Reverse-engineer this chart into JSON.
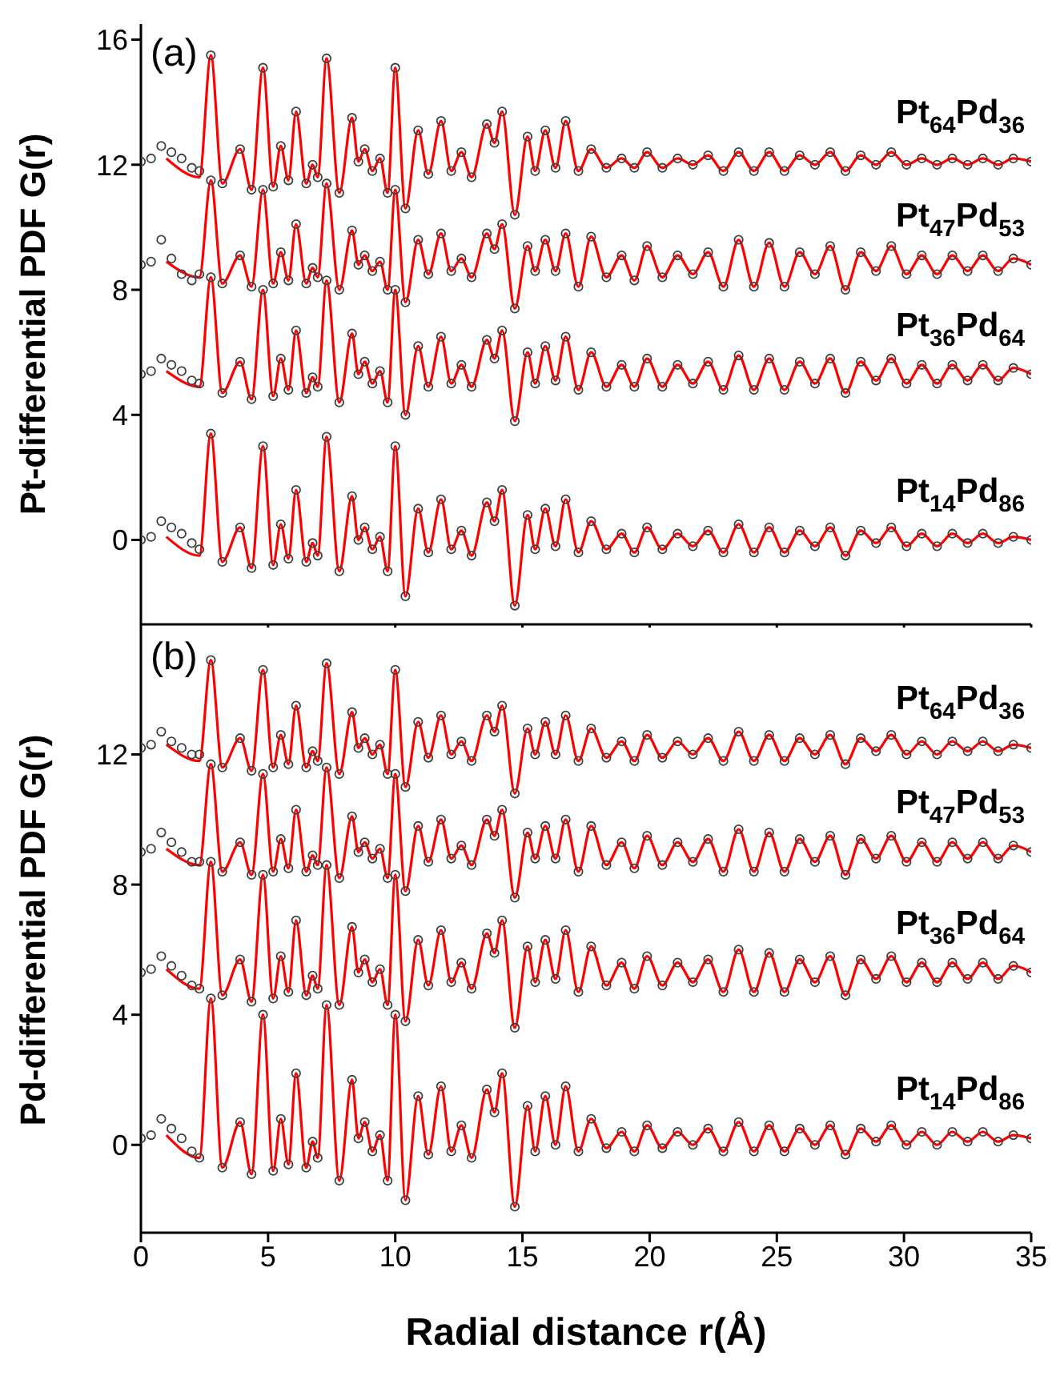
{
  "chart_data": [
    {
      "type": "line",
      "annotations": [
        "(a)"
      ],
      "ylabel": "Pt-differential PDF G(r)",
      "xlim": [
        0,
        35
      ],
      "xticks": [
        0,
        5,
        10,
        15,
        20,
        25,
        30,
        35
      ],
      "ylim": [
        -2.7,
        16.5
      ],
      "yticks": [
        0,
        4,
        8,
        12,
        16
      ],
      "tick_labels": "y",
      "x": [
        0,
        0.4,
        0.8,
        1.2,
        1.6,
        2.0,
        2.3,
        2.75,
        3.2,
        3.9,
        4.35,
        4.8,
        5.2,
        5.5,
        5.8,
        6.1,
        6.5,
        6.75,
        6.95,
        7.3,
        7.8,
        8.3,
        8.55,
        8.8,
        9.1,
        9.4,
        9.7,
        10.0,
        10.4,
        10.9,
        11.3,
        11.8,
        12.2,
        12.6,
        13.0,
        13.6,
        13.9,
        14.2,
        14.7,
        15.2,
        15.5,
        15.9,
        16.3,
        16.7,
        17.2,
        17.7,
        18.3,
        18.9,
        19.4,
        19.9,
        20.5,
        21.1,
        21.7,
        22.3,
        22.9,
        23.5,
        24.1,
        24.7,
        25.3,
        25.9,
        26.5,
        27.1,
        27.7,
        28.3,
        28.9,
        29.5,
        30.1,
        30.7,
        31.3,
        31.9,
        32.5,
        33.1,
        33.7,
        34.3,
        35.0
      ],
      "series": [
        {
          "type": "scatter",
          "name": "Pt$_{64}$Pd$_{36}$",
          "marker": "circle",
          "color": "#404040",
          "values": [
            12.1,
            12.2,
            12.6,
            12.4,
            12.2,
            11.9,
            11.8,
            15.5,
            11.4,
            12.5,
            11.2,
            15.1,
            11.3,
            12.6,
            11.5,
            13.7,
            11.4,
            12.0,
            11.6,
            15.4,
            11.1,
            13.5,
            12.1,
            12.5,
            11.8,
            12.2,
            11.1,
            15.1,
            10.6,
            13.1,
            11.7,
            13.4,
            11.8,
            12.4,
            11.6,
            13.3,
            12.7,
            13.7,
            10.4,
            12.9,
            11.8,
            13.1,
            11.9,
            13.4,
            11.8,
            12.5,
            11.9,
            12.2,
            11.9,
            12.4,
            11.9,
            12.2,
            12.0,
            12.3,
            11.8,
            12.4,
            11.8,
            12.4,
            11.8,
            12.3,
            12.0,
            12.4,
            11.8,
            12.3,
            12.0,
            12.4,
            12.0,
            12.2,
            12.0,
            12.2,
            12.0,
            12.2,
            12.0,
            12.2,
            12.1
          ]
        },
        {
          "type": "line",
          "color": "#ff0000",
          "x": [
            1.0,
            2.3,
            2.75,
            3.2,
            3.9,
            4.35,
            4.8,
            5.2,
            5.5,
            5.8,
            6.1,
            6.5,
            6.75,
            6.95,
            7.3,
            7.8,
            8.3,
            8.55,
            8.8,
            9.1,
            9.4,
            9.7,
            10.0,
            10.4,
            10.9,
            11.3,
            11.8,
            12.2,
            12.6,
            13.0,
            13.6,
            13.9,
            14.2,
            14.7,
            15.2,
            15.5,
            15.9,
            16.3,
            16.7,
            17.2,
            17.7,
            18.3,
            18.9,
            19.4,
            19.9,
            20.5,
            21.1,
            21.7,
            22.3,
            22.9,
            23.5,
            24.1,
            24.7,
            25.3,
            25.9,
            26.5,
            27.1,
            27.7,
            28.3,
            28.9,
            29.5,
            30.1,
            30.7,
            31.3,
            31.9,
            32.5,
            33.1,
            33.7,
            34.3,
            35.0
          ],
          "values": [
            12.2,
            11.6,
            15.5,
            11.4,
            12.5,
            11.2,
            15.1,
            11.3,
            12.6,
            11.5,
            13.7,
            11.4,
            12.0,
            11.6,
            15.4,
            11.1,
            13.5,
            12.1,
            12.5,
            11.8,
            12.2,
            11.1,
            15.1,
            10.6,
            13.1,
            11.7,
            13.4,
            11.8,
            12.4,
            11.6,
            13.3,
            12.7,
            13.7,
            10.4,
            12.9,
            11.8,
            13.1,
            11.9,
            13.4,
            11.8,
            12.5,
            11.9,
            12.2,
            11.9,
            12.4,
            11.9,
            12.2,
            12.0,
            12.3,
            11.8,
            12.4,
            11.8,
            12.4,
            11.8,
            12.3,
            12.0,
            12.4,
            11.8,
            12.3,
            12.0,
            12.4,
            12.0,
            12.2,
            12.0,
            12.2,
            12.0,
            12.2,
            12.0,
            12.2,
            12.1
          ]
        },
        {
          "type": "scatter",
          "name": "Pt$_{47}$Pd$_{53}$",
          "marker": "circle",
          "color": "#404040",
          "values": [
            8.8,
            8.9,
            9.6,
            9.0,
            8.5,
            8.3,
            8.5,
            11.5,
            8.2,
            9.1,
            8.1,
            11.2,
            8.2,
            9.2,
            8.3,
            10.1,
            8.2,
            8.7,
            8.4,
            11.4,
            8.0,
            9.9,
            8.8,
            9.1,
            8.6,
            8.9,
            8.0,
            11.2,
            7.6,
            9.6,
            8.5,
            9.8,
            8.6,
            9.0,
            8.4,
            9.8,
            9.3,
            10.1,
            7.4,
            9.4,
            8.6,
            9.6,
            8.6,
            9.8,
            8.1,
            9.7,
            8.4,
            9.1,
            8.3,
            9.4,
            8.4,
            9.1,
            8.5,
            9.2,
            8.1,
            9.6,
            8.1,
            9.5,
            8.1,
            9.2,
            8.5,
            9.4,
            8.0,
            9.2,
            8.6,
            9.4,
            8.5,
            9.1,
            8.5,
            9.1,
            8.6,
            9.1,
            8.6,
            9.0,
            8.8
          ]
        },
        {
          "type": "line",
          "color": "#ff0000",
          "x": [
            1.0,
            2.3,
            2.75,
            3.2,
            3.9,
            4.35,
            4.8,
            5.2,
            5.5,
            5.8,
            6.1,
            6.5,
            6.75,
            6.95,
            7.3,
            7.8,
            8.3,
            8.55,
            8.8,
            9.1,
            9.4,
            9.7,
            10.0,
            10.4,
            10.9,
            11.3,
            11.8,
            12.2,
            12.6,
            13.0,
            13.6,
            13.9,
            14.2,
            14.7,
            15.2,
            15.5,
            15.9,
            16.3,
            16.7,
            17.2,
            17.7,
            18.3,
            18.9,
            19.4,
            19.9,
            20.5,
            21.1,
            21.7,
            22.3,
            22.9,
            23.5,
            24.1,
            24.7,
            25.3,
            25.9,
            26.5,
            27.1,
            27.7,
            28.3,
            28.9,
            29.5,
            30.1,
            30.7,
            31.3,
            31.9,
            32.5,
            33.1,
            33.7,
            34.3,
            35.0
          ],
          "values": [
            8.9,
            8.4,
            11.5,
            8.2,
            9.1,
            8.1,
            11.2,
            8.2,
            9.2,
            8.3,
            10.1,
            8.2,
            8.7,
            8.4,
            11.4,
            8.0,
            9.9,
            8.8,
            9.1,
            8.6,
            8.9,
            8.0,
            11.2,
            7.6,
            9.6,
            8.5,
            9.8,
            8.6,
            9.0,
            8.4,
            9.8,
            9.3,
            10.1,
            7.4,
            9.4,
            8.6,
            9.6,
            8.6,
            9.8,
            8.1,
            9.7,
            8.4,
            9.1,
            8.3,
            9.4,
            8.4,
            9.1,
            8.5,
            9.2,
            8.1,
            9.6,
            8.1,
            9.5,
            8.1,
            9.2,
            8.5,
            9.4,
            8.0,
            9.2,
            8.6,
            9.4,
            8.5,
            9.1,
            8.5,
            9.1,
            8.6,
            9.1,
            8.6,
            9.0,
            8.8
          ]
        },
        {
          "type": "scatter",
          "name": "Pt$_{36}$Pd$_{64}$",
          "marker": "circle",
          "color": "#404040",
          "values": [
            5.3,
            5.4,
            5.8,
            5.6,
            5.4,
            5.1,
            5.0,
            8.4,
            4.7,
            5.7,
            4.5,
            8.0,
            4.6,
            5.8,
            4.8,
            6.7,
            4.7,
            5.2,
            4.9,
            8.3,
            4.4,
            6.6,
            5.3,
            5.7,
            5.0,
            5.4,
            4.4,
            8.0,
            4.0,
            6.2,
            4.9,
            6.5,
            5.0,
            5.6,
            4.9,
            6.4,
            5.8,
            6.7,
            3.8,
            6.0,
            5.0,
            6.2,
            5.1,
            6.5,
            4.8,
            6.0,
            4.9,
            5.6,
            4.9,
            5.8,
            4.9,
            5.6,
            5.0,
            5.7,
            4.8,
            5.9,
            4.8,
            5.8,
            4.8,
            5.7,
            5.0,
            5.8,
            4.7,
            5.7,
            5.1,
            5.8,
            5.0,
            5.6,
            5.0,
            5.6,
            5.1,
            5.6,
            5.1,
            5.5,
            5.3
          ]
        },
        {
          "type": "line",
          "color": "#ff0000",
          "x": [
            1.0,
            2.3,
            2.75,
            3.2,
            3.9,
            4.35,
            4.8,
            5.2,
            5.5,
            5.8,
            6.1,
            6.5,
            6.75,
            6.95,
            7.3,
            7.8,
            8.3,
            8.55,
            8.8,
            9.1,
            9.4,
            9.7,
            10.0,
            10.4,
            10.9,
            11.3,
            11.8,
            12.2,
            12.6,
            13.0,
            13.6,
            13.9,
            14.2,
            14.7,
            15.2,
            15.5,
            15.9,
            16.3,
            16.7,
            17.2,
            17.7,
            18.3,
            18.9,
            19.4,
            19.9,
            20.5,
            21.1,
            21.7,
            22.3,
            22.9,
            23.5,
            24.1,
            24.7,
            25.3,
            25.9,
            26.5,
            27.1,
            27.7,
            28.3,
            28.9,
            29.5,
            30.1,
            30.7,
            31.3,
            31.9,
            32.5,
            33.1,
            33.7,
            34.3,
            35.0
          ],
          "values": [
            5.4,
            4.9,
            8.4,
            4.7,
            5.7,
            4.5,
            8.0,
            4.6,
            5.8,
            4.8,
            6.7,
            4.7,
            5.2,
            4.9,
            8.3,
            4.4,
            6.6,
            5.3,
            5.7,
            5.0,
            5.4,
            4.4,
            8.0,
            4.0,
            6.2,
            4.9,
            6.5,
            5.0,
            5.6,
            4.9,
            6.4,
            5.8,
            6.7,
            3.8,
            6.0,
            5.0,
            6.2,
            5.1,
            6.5,
            4.8,
            6.0,
            4.9,
            5.6,
            4.9,
            5.8,
            4.9,
            5.6,
            5.0,
            5.7,
            4.8,
            5.9,
            4.8,
            5.8,
            4.8,
            5.7,
            5.0,
            5.8,
            4.7,
            5.7,
            5.1,
            5.8,
            5.0,
            5.6,
            5.0,
            5.6,
            5.1,
            5.6,
            5.1,
            5.5,
            5.3
          ]
        },
        {
          "type": "scatter",
          "name": "Pt$_{14}$Pd$_{86}$",
          "marker": "circle",
          "color": "#404040",
          "values": [
            0.0,
            0.1,
            0.6,
            0.4,
            0.2,
            -0.1,
            -0.3,
            3.4,
            -0.7,
            0.4,
            -0.9,
            3.0,
            -0.8,
            0.5,
            -0.6,
            1.6,
            -0.7,
            -0.1,
            -0.5,
            3.3,
            -1.0,
            1.4,
            0.0,
            0.4,
            -0.3,
            0.1,
            -1.0,
            3.0,
            -1.8,
            1.0,
            -0.4,
            1.3,
            -0.3,
            0.3,
            -0.5,
            1.2,
            0.6,
            1.6,
            -2.1,
            0.8,
            -0.3,
            1.0,
            -0.2,
            1.3,
            -0.4,
            0.6,
            -0.3,
            0.2,
            -0.4,
            0.4,
            -0.3,
            0.2,
            -0.2,
            0.3,
            -0.4,
            0.5,
            -0.4,
            0.4,
            -0.4,
            0.3,
            -0.2,
            0.4,
            -0.5,
            0.3,
            -0.1,
            0.4,
            -0.2,
            0.2,
            -0.2,
            0.2,
            -0.1,
            0.2,
            -0.1,
            0.1,
            0.0
          ]
        },
        {
          "type": "line",
          "color": "#ff0000",
          "x": [
            1.0,
            2.3,
            2.75,
            3.2,
            3.9,
            4.35,
            4.8,
            5.2,
            5.5,
            5.8,
            6.1,
            6.5,
            6.75,
            6.95,
            7.3,
            7.8,
            8.3,
            8.55,
            8.8,
            9.1,
            9.4,
            9.7,
            10.0,
            10.4,
            10.9,
            11.3,
            11.8,
            12.2,
            12.6,
            13.0,
            13.6,
            13.9,
            14.2,
            14.7,
            15.2,
            15.5,
            15.9,
            16.3,
            16.7,
            17.2,
            17.7,
            18.3,
            18.9,
            19.4,
            19.9,
            20.5,
            21.1,
            21.7,
            22.3,
            22.9,
            23.5,
            24.1,
            24.7,
            25.3,
            25.9,
            26.5,
            27.1,
            27.7,
            28.3,
            28.9,
            29.5,
            30.1,
            30.7,
            31.3,
            31.9,
            32.5,
            33.1,
            33.7,
            34.3,
            35.0
          ],
          "values": [
            0.1,
            -0.5,
            3.4,
            -0.7,
            0.4,
            -0.9,
            3.0,
            -0.8,
            0.5,
            -0.6,
            1.6,
            -0.7,
            -0.1,
            -0.5,
            3.3,
            -1.0,
            1.4,
            0.0,
            0.4,
            -0.3,
            0.1,
            -1.0,
            3.0,
            -1.8,
            1.0,
            -0.4,
            1.3,
            -0.3,
            0.3,
            -0.5,
            1.2,
            0.6,
            1.6,
            -2.1,
            0.8,
            -0.3,
            1.0,
            -0.2,
            1.3,
            -0.4,
            0.6,
            -0.3,
            0.2,
            -0.4,
            0.4,
            -0.3,
            0.2,
            -0.2,
            0.3,
            -0.4,
            0.5,
            -0.4,
            0.4,
            -0.4,
            0.3,
            -0.2,
            0.4,
            -0.5,
            0.3,
            -0.1,
            0.4,
            -0.2,
            0.2,
            -0.2,
            0.2,
            -0.1,
            0.2,
            -0.1,
            0.1,
            0.0
          ]
        }
      ]
    },
    {
      "type": "line",
      "annotations": [
        "(b)"
      ],
      "ylabel": "Pd-differential PDF G(r)",
      "xlabel": "Radial distance r(Å)",
      "xlim": [
        0,
        35
      ],
      "xticks": [
        0,
        5,
        10,
        15,
        20,
        25,
        30,
        35
      ],
      "ylim": [
        -2.7,
        15.9
      ],
      "yticks": [
        0,
        4,
        8,
        12
      ],
      "x": [
        0,
        0.4,
        0.8,
        1.2,
        1.6,
        2.0,
        2.3,
        2.75,
        3.2,
        3.9,
        4.35,
        4.8,
        5.2,
        5.5,
        5.8,
        6.1,
        6.5,
        6.75,
        6.95,
        7.3,
        7.8,
        8.3,
        8.55,
        8.8,
        9.1,
        9.4,
        9.7,
        10.0,
        10.4,
        10.9,
        11.3,
        11.8,
        12.2,
        12.6,
        13.0,
        13.6,
        13.9,
        14.2,
        14.7,
        15.2,
        15.5,
        15.9,
        16.3,
        16.7,
        17.2,
        17.7,
        18.3,
        18.9,
        19.4,
        19.9,
        20.5,
        21.1,
        21.7,
        22.3,
        22.9,
        23.5,
        24.1,
        24.7,
        25.3,
        25.9,
        26.5,
        27.1,
        27.7,
        28.3,
        28.9,
        29.5,
        30.1,
        30.7,
        31.3,
        31.9,
        32.5,
        33.1,
        33.7,
        34.3,
        35.0
      ],
      "series": [
        {
          "type": "scatter",
          "name": "Pt$_{64}$Pd$_{36}$",
          "marker": "circle",
          "color": "#404040",
          "values": [
            12.2,
            12.3,
            12.7,
            12.4,
            12.2,
            12.0,
            12.0,
            14.9,
            11.6,
            12.5,
            11.5,
            14.6,
            11.6,
            12.6,
            11.7,
            13.5,
            11.6,
            12.1,
            11.8,
            14.8,
            11.4,
            13.3,
            12.2,
            12.5,
            12.0,
            12.3,
            11.4,
            14.6,
            11.0,
            13.0,
            11.9,
            13.2,
            12.0,
            12.4,
            11.8,
            13.2,
            12.7,
            13.5,
            10.8,
            12.8,
            12.0,
            13.0,
            12.0,
            13.2,
            11.8,
            12.8,
            11.9,
            12.4,
            11.8,
            12.6,
            11.9,
            12.4,
            12.0,
            12.5,
            11.8,
            12.7,
            11.8,
            12.6,
            11.8,
            12.5,
            12.0,
            12.6,
            11.7,
            12.5,
            12.1,
            12.6,
            12.0,
            12.4,
            12.0,
            12.4,
            12.1,
            12.4,
            12.1,
            12.3,
            12.2
          ]
        },
        {
          "type": "line",
          "color": "#ff0000",
          "x": [
            1.0,
            2.3,
            2.75,
            3.2,
            3.9,
            4.35,
            4.8,
            5.2,
            5.5,
            5.8,
            6.1,
            6.5,
            6.75,
            6.95,
            7.3,
            7.8,
            8.3,
            8.55,
            8.8,
            9.1,
            9.4,
            9.7,
            10.0,
            10.4,
            10.9,
            11.3,
            11.8,
            12.2,
            12.6,
            13.0,
            13.6,
            13.9,
            14.2,
            14.7,
            15.2,
            15.5,
            15.9,
            16.3,
            16.7,
            17.2,
            17.7,
            18.3,
            18.9,
            19.4,
            19.9,
            20.5,
            21.1,
            21.7,
            22.3,
            22.9,
            23.5,
            24.1,
            24.7,
            25.3,
            25.9,
            26.5,
            27.1,
            27.7,
            28.3,
            28.9,
            29.5,
            30.1,
            30.7,
            31.3,
            31.9,
            32.5,
            33.1,
            33.7,
            34.3,
            35.0
          ],
          "values": [
            12.3,
            11.8,
            14.9,
            11.6,
            12.5,
            11.5,
            14.6,
            11.6,
            12.6,
            11.7,
            13.5,
            11.6,
            12.1,
            11.8,
            14.8,
            11.4,
            13.3,
            12.2,
            12.5,
            12.0,
            12.3,
            11.4,
            14.6,
            11.0,
            13.0,
            11.9,
            13.2,
            12.0,
            12.4,
            11.8,
            13.2,
            12.7,
            13.5,
            10.8,
            12.8,
            12.0,
            13.0,
            12.0,
            13.2,
            11.8,
            12.8,
            11.9,
            12.4,
            11.8,
            12.6,
            11.9,
            12.4,
            12.0,
            12.5,
            11.8,
            12.7,
            11.8,
            12.6,
            11.8,
            12.5,
            12.0,
            12.6,
            11.7,
            12.5,
            12.1,
            12.6,
            12.0,
            12.4,
            12.0,
            12.4,
            12.1,
            12.4,
            12.1,
            12.3,
            12.2
          ]
        },
        {
          "type": "scatter",
          "name": "Pt$_{47}$Pd$_{53}$",
          "marker": "circle",
          "color": "#404040",
          "values": [
            9.0,
            9.1,
            9.6,
            9.3,
            9.0,
            8.7,
            8.7,
            11.7,
            8.4,
            9.3,
            8.3,
            11.4,
            8.4,
            9.4,
            8.5,
            10.3,
            8.4,
            8.9,
            8.6,
            11.6,
            8.2,
            10.1,
            9.0,
            9.3,
            8.8,
            9.1,
            8.2,
            11.4,
            7.8,
            9.8,
            8.7,
            10.0,
            8.8,
            9.2,
            8.6,
            10.0,
            9.5,
            10.3,
            7.6,
            9.6,
            8.8,
            9.8,
            8.8,
            10.0,
            8.4,
            9.8,
            8.6,
            9.3,
            8.5,
            9.5,
            8.6,
            9.3,
            8.7,
            9.4,
            8.4,
            9.7,
            8.4,
            9.6,
            8.4,
            9.4,
            8.7,
            9.5,
            8.3,
            9.4,
            8.8,
            9.5,
            8.7,
            9.3,
            8.7,
            9.3,
            8.8,
            9.3,
            8.8,
            9.2,
            9.0
          ]
        },
        {
          "type": "line",
          "color": "#ff0000",
          "x": [
            1.0,
            2.3,
            2.75,
            3.2,
            3.9,
            4.35,
            4.8,
            5.2,
            5.5,
            5.8,
            6.1,
            6.5,
            6.75,
            6.95,
            7.3,
            7.8,
            8.3,
            8.55,
            8.8,
            9.1,
            9.4,
            9.7,
            10.0,
            10.4,
            10.9,
            11.3,
            11.8,
            12.2,
            12.6,
            13.0,
            13.6,
            13.9,
            14.2,
            14.7,
            15.2,
            15.5,
            15.9,
            16.3,
            16.7,
            17.2,
            17.7,
            18.3,
            18.9,
            19.4,
            19.9,
            20.5,
            21.1,
            21.7,
            22.3,
            22.9,
            23.5,
            24.1,
            24.7,
            25.3,
            25.9,
            26.5,
            27.1,
            27.7,
            28.3,
            28.9,
            29.5,
            30.1,
            30.7,
            31.3,
            31.9,
            32.5,
            33.1,
            33.7,
            34.3,
            35.0
          ],
          "values": [
            9.1,
            8.6,
            11.7,
            8.4,
            9.3,
            8.3,
            11.4,
            8.4,
            9.4,
            8.5,
            10.3,
            8.4,
            8.9,
            8.6,
            11.6,
            8.2,
            10.1,
            9.0,
            9.3,
            8.8,
            9.1,
            8.2,
            11.4,
            7.8,
            9.8,
            8.7,
            10.0,
            8.8,
            9.2,
            8.6,
            10.0,
            9.5,
            10.3,
            7.6,
            9.6,
            8.8,
            9.8,
            8.8,
            10.0,
            8.4,
            9.8,
            8.6,
            9.3,
            8.5,
            9.5,
            8.6,
            9.3,
            8.7,
            9.4,
            8.4,
            9.7,
            8.4,
            9.6,
            8.4,
            9.4,
            8.7,
            9.5,
            8.3,
            9.4,
            8.8,
            9.5,
            8.7,
            9.3,
            8.7,
            9.3,
            8.8,
            9.3,
            8.8,
            9.2,
            9.0
          ]
        },
        {
          "type": "scatter",
          "name": "Pt$_{36}$Pd$_{64}$",
          "marker": "circle",
          "color": "#404040",
          "values": [
            5.3,
            5.4,
            5.8,
            5.5,
            5.2,
            4.9,
            4.8,
            8.7,
            4.6,
            5.7,
            4.4,
            8.3,
            4.5,
            5.8,
            4.7,
            6.9,
            4.6,
            5.2,
            4.8,
            8.6,
            4.3,
            6.7,
            5.3,
            5.7,
            5.0,
            5.4,
            4.3,
            8.3,
            3.8,
            6.3,
            4.9,
            6.6,
            5.0,
            5.6,
            4.8,
            6.5,
            5.9,
            6.9,
            3.6,
            6.1,
            5.0,
            6.3,
            5.1,
            6.6,
            4.7,
            6.1,
            4.9,
            5.6,
            4.8,
            5.8,
            4.9,
            5.6,
            5.0,
            5.7,
            4.7,
            6.0,
            4.7,
            5.9,
            4.7,
            5.7,
            5.0,
            5.8,
            4.6,
            5.7,
            5.1,
            5.8,
            5.0,
            5.6,
            5.0,
            5.6,
            5.1,
            5.6,
            5.1,
            5.5,
            5.3
          ]
        },
        {
          "type": "line",
          "color": "#ff0000",
          "x": [
            1.0,
            2.3,
            2.75,
            3.2,
            3.9,
            4.35,
            4.8,
            5.2,
            5.5,
            5.8,
            6.1,
            6.5,
            6.75,
            6.95,
            7.3,
            7.8,
            8.3,
            8.55,
            8.8,
            9.1,
            9.4,
            9.7,
            10.0,
            10.4,
            10.9,
            11.3,
            11.8,
            12.2,
            12.6,
            13.0,
            13.6,
            13.9,
            14.2,
            14.7,
            15.2,
            15.5,
            15.9,
            16.3,
            16.7,
            17.2,
            17.7,
            18.3,
            18.9,
            19.4,
            19.9,
            20.5,
            21.1,
            21.7,
            22.3,
            22.9,
            23.5,
            24.1,
            24.7,
            25.3,
            25.9,
            26.5,
            27.1,
            27.7,
            28.3,
            28.9,
            29.5,
            30.1,
            30.7,
            31.3,
            31.9,
            32.5,
            33.1,
            33.7,
            34.3,
            35.0
          ],
          "values": [
            5.4,
            4.8,
            8.7,
            4.6,
            5.7,
            4.4,
            8.3,
            4.5,
            5.8,
            4.7,
            6.9,
            4.6,
            5.2,
            4.8,
            8.6,
            4.3,
            6.7,
            5.3,
            5.7,
            5.0,
            5.4,
            4.3,
            8.3,
            3.8,
            6.3,
            4.9,
            6.6,
            5.0,
            5.6,
            4.8,
            6.5,
            5.9,
            6.9,
            3.6,
            6.1,
            5.0,
            6.3,
            5.1,
            6.6,
            4.7,
            6.1,
            4.9,
            5.6,
            4.8,
            5.8,
            4.9,
            5.6,
            5.0,
            5.7,
            4.7,
            6.0,
            4.7,
            5.9,
            4.7,
            5.7,
            5.0,
            5.8,
            4.6,
            5.7,
            5.1,
            5.8,
            5.0,
            5.6,
            5.0,
            5.6,
            5.1,
            5.6,
            5.1,
            5.5,
            5.3
          ]
        },
        {
          "type": "scatter",
          "name": "Pt$_{14}$Pd$_{86}$",
          "marker": "circle",
          "color": "#404040",
          "values": [
            0.2,
            0.3,
            0.8,
            0.5,
            0.2,
            -0.2,
            -0.4,
            4.5,
            -0.7,
            0.7,
            -0.9,
            4.0,
            -0.8,
            0.8,
            -0.6,
            2.2,
            -0.7,
            0.1,
            -0.4,
            4.3,
            -1.1,
            2.0,
            0.2,
            0.7,
            -0.2,
            0.3,
            -1.1,
            4.0,
            -1.7,
            1.5,
            -0.3,
            1.8,
            -0.2,
            0.6,
            -0.4,
            1.7,
            1.0,
            2.2,
            -1.9,
            1.2,
            -0.2,
            1.5,
            0.0,
            1.8,
            -0.2,
            0.8,
            -0.1,
            0.4,
            -0.2,
            0.6,
            -0.1,
            0.4,
            0.0,
            0.5,
            -0.2,
            0.7,
            -0.2,
            0.6,
            -0.2,
            0.5,
            0.0,
            0.6,
            -0.3,
            0.5,
            0.1,
            0.6,
            0.0,
            0.4,
            0.0,
            0.4,
            0.1,
            0.4,
            0.1,
            0.3,
            0.2
          ]
        },
        {
          "type": "line",
          "color": "#ff0000",
          "x": [
            1.0,
            2.3,
            2.75,
            3.2,
            3.9,
            4.35,
            4.8,
            5.2,
            5.5,
            5.8,
            6.1,
            6.5,
            6.75,
            6.95,
            7.3,
            7.8,
            8.3,
            8.55,
            8.8,
            9.1,
            9.4,
            9.7,
            10.0,
            10.4,
            10.9,
            11.3,
            11.8,
            12.2,
            12.6,
            13.0,
            13.6,
            13.9,
            14.2,
            14.7,
            15.2,
            15.5,
            15.9,
            16.3,
            16.7,
            17.2,
            17.7,
            18.3,
            18.9,
            19.4,
            19.9,
            20.5,
            21.1,
            21.7,
            22.3,
            22.9,
            23.5,
            24.1,
            24.7,
            25.3,
            25.9,
            26.5,
            27.1,
            27.7,
            28.3,
            28.9,
            29.5,
            30.1,
            30.7,
            31.3,
            31.9,
            32.5,
            33.1,
            33.7,
            34.3,
            35.0
          ],
          "values": [
            0.3,
            -0.4,
            4.5,
            -0.7,
            0.7,
            -0.9,
            4.0,
            -0.8,
            0.8,
            -0.6,
            2.2,
            -0.7,
            0.1,
            -0.4,
            4.3,
            -1.1,
            2.0,
            0.2,
            0.7,
            -0.2,
            0.3,
            -1.1,
            4.0,
            -1.7,
            1.5,
            -0.3,
            1.8,
            -0.2,
            0.6,
            -0.4,
            1.7,
            1.0,
            2.2,
            -1.9,
            1.2,
            -0.2,
            1.5,
            0.0,
            1.8,
            -0.2,
            0.8,
            -0.1,
            0.4,
            -0.2,
            0.6,
            -0.1,
            0.4,
            0.0,
            0.5,
            -0.2,
            0.7,
            -0.2,
            0.6,
            -0.2,
            0.5,
            0.0,
            0.6,
            -0.3,
            0.5,
            0.1,
            0.6,
            0.0,
            0.4,
            0.0,
            0.4,
            0.1,
            0.4,
            0.1,
            0.3,
            0.2
          ]
        }
      ]
    }
  ]
}
